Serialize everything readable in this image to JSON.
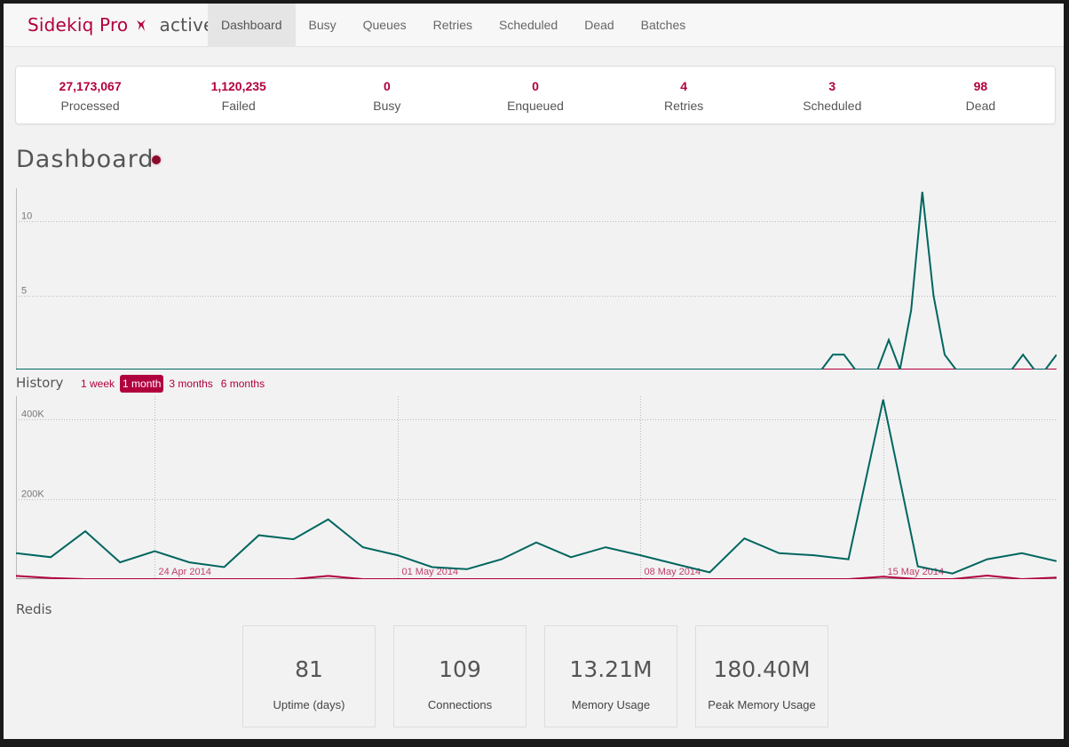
{
  "brand": {
    "name": "Sidekiq Pro",
    "status": "active"
  },
  "nav": {
    "tabs": [
      {
        "label": "Dashboard",
        "active": true
      },
      {
        "label": "Busy"
      },
      {
        "label": "Queues"
      },
      {
        "label": "Retries"
      },
      {
        "label": "Scheduled"
      },
      {
        "label": "Dead"
      },
      {
        "label": "Batches"
      }
    ]
  },
  "summary": {
    "processed": {
      "value": "27,173,067",
      "label": "Processed"
    },
    "failed": {
      "value": "1,120,235",
      "label": "Failed"
    },
    "busy": {
      "value": "0",
      "label": "Busy"
    },
    "enqueued": {
      "value": "0",
      "label": "Enqueued"
    },
    "retries": {
      "value": "4",
      "label": "Retries"
    },
    "scheduled": {
      "value": "3",
      "label": "Scheduled"
    },
    "dead": {
      "value": "98",
      "label": "Dead"
    }
  },
  "page_title": "Dashboard",
  "history": {
    "label": "History",
    "ranges": [
      "1 week",
      "1 month",
      "3 months",
      "6 months"
    ],
    "active_range": "1 month"
  },
  "redis": {
    "label": "Redis",
    "stats": [
      {
        "value": "81",
        "label": "Uptime (days)"
      },
      {
        "value": "109",
        "label": "Connections"
      },
      {
        "value": "13.21M",
        "label": "Memory Usage"
      },
      {
        "value": "180.40M",
        "label": "Peak Memory Usage"
      }
    ]
  },
  "colors": {
    "processed": "#00665f",
    "failed": "#b1003e",
    "accent": "#b1003e"
  },
  "chart_data": [
    {
      "type": "line",
      "name": "realtime",
      "ylim": [
        0,
        12
      ],
      "yticks": [
        "5",
        "10"
      ],
      "grid": true,
      "series": [
        {
          "name": "processed",
          "values": [
            0,
            0,
            0,
            0,
            0,
            0,
            0,
            0,
            0,
            0,
            0,
            0,
            0,
            0,
            0,
            0,
            0,
            0,
            0,
            0,
            0,
            0,
            0,
            0,
            0,
            0,
            0,
            0,
            0,
            0,
            0,
            0,
            0,
            0,
            0,
            0,
            0,
            0,
            0,
            0,
            0,
            0,
            0,
            0,
            0,
            0,
            0,
            0,
            0,
            0,
            0,
            0,
            0,
            0,
            0,
            0,
            0,
            0,
            0,
            0,
            0,
            0,
            0,
            0,
            0,
            0,
            0,
            0,
            0,
            0,
            0,
            0,
            0,
            1,
            1,
            0,
            0,
            0,
            2,
            0,
            4,
            12,
            5,
            1,
            0,
            0,
            0,
            0,
            0,
            0,
            1,
            0,
            0,
            1
          ]
        },
        {
          "name": "failed",
          "values": [
            0,
            0,
            0,
            0,
            0,
            0,
            0,
            0,
            0,
            0,
            0,
            0,
            0,
            0,
            0,
            0,
            0,
            0,
            0,
            0,
            0,
            0,
            0,
            0,
            0,
            0,
            0,
            0,
            0,
            0,
            0,
            0,
            0,
            0,
            0,
            0,
            0,
            0,
            0,
            0,
            0,
            0,
            0,
            0,
            0,
            0,
            0,
            0,
            0,
            0,
            0,
            0,
            0,
            0,
            0,
            0,
            0,
            0,
            0,
            0,
            0,
            0,
            0,
            0,
            0,
            0,
            0,
            0,
            0,
            0,
            0,
            0,
            0,
            0,
            0,
            0,
            0,
            0,
            0,
            0,
            0,
            0,
            0,
            0,
            0,
            0,
            0,
            0,
            0,
            0,
            0,
            0,
            0,
            0
          ]
        }
      ]
    },
    {
      "type": "line",
      "name": "history",
      "x": [
        "20 Apr 2014",
        "21 Apr 2014",
        "22 Apr 2014",
        "23 Apr 2014",
        "24 Apr 2014",
        "25 Apr 2014",
        "26 Apr 2014",
        "27 Apr 2014",
        "28 Apr 2014",
        "29 Apr 2014",
        "30 Apr 2014",
        "01 May 2014",
        "02 May 2014",
        "03 May 2014",
        "04 May 2014",
        "05 May 2014",
        "06 May 2014",
        "07 May 2014",
        "08 May 2014",
        "09 May 2014",
        "10 May 2014",
        "11 May 2014",
        "12 May 2014",
        "13 May 2014",
        "14 May 2014",
        "15 May 2014",
        "16 May 2014",
        "17 May 2014",
        "18 May 2014",
        "19 May 2014",
        "20 May 2014"
      ],
      "xticks": [
        "24 Apr 2014",
        "01 May 2014",
        "08 May 2014",
        "15 May 2014"
      ],
      "yticks": [
        "200K",
        "400K"
      ],
      "ylim": [
        0,
        450000
      ],
      "grid": true,
      "series": [
        {
          "name": "processed",
          "values": [
            65000,
            55000,
            120000,
            42000,
            70000,
            42000,
            30000,
            110000,
            100000,
            150000,
            80000,
            60000,
            30000,
            25000,
            50000,
            92000,
            55000,
            80000,
            60000,
            38000,
            17000,
            102000,
            65000,
            60000,
            50000,
            450000,
            32000,
            14000,
            50000,
            65000,
            45000
          ]
        },
        {
          "name": "failed",
          "values": [
            8000,
            3000,
            0,
            0,
            0,
            0,
            0,
            0,
            0,
            8000,
            0,
            0,
            0,
            0,
            0,
            0,
            0,
            0,
            0,
            0,
            0,
            0,
            0,
            0,
            0,
            6000,
            0,
            0,
            9000,
            0,
            4000
          ]
        }
      ]
    }
  ]
}
